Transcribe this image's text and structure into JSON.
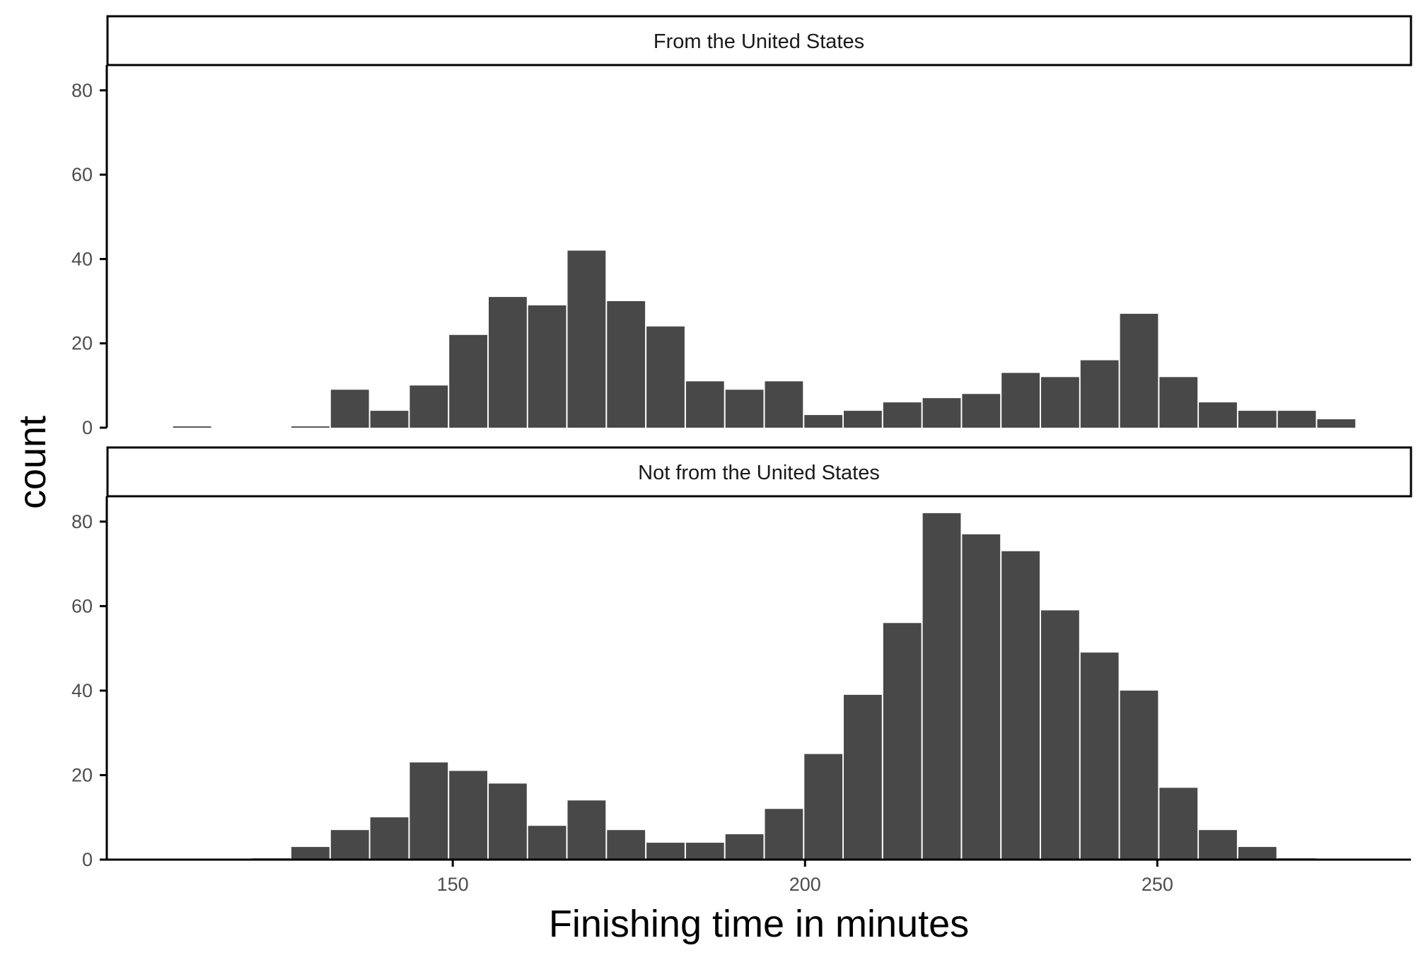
{
  "chart_data": {
    "type": "bar",
    "xlabel": "Finishing time in minutes",
    "ylabel": "count",
    "xlim": [
      101,
      286
    ],
    "ylim": [
      0,
      86
    ],
    "x_ticks": [
      150,
      200,
      250
    ],
    "y_ticks": [
      0,
      20,
      40,
      60,
      80
    ],
    "bin_width": 5.6,
    "bin_centers": [
      113.0,
      118.6,
      124.2,
      129.8,
      135.4,
      141.0,
      146.6,
      152.2,
      157.8,
      163.4,
      169.0,
      174.6,
      180.2,
      185.8,
      191.4,
      197.0,
      202.6,
      208.2,
      213.8,
      219.4,
      225.0,
      230.6,
      236.2,
      241.8,
      247.4,
      253.0,
      258.6,
      264.2,
      269.8,
      275.4
    ],
    "fill_color": "#484848",
    "grid": false,
    "panels": [
      {
        "strip": "From the United States",
        "values": [
          0.3,
          0,
          0,
          0.3,
          9,
          4,
          10,
          22,
          31,
          29,
          42,
          30,
          24,
          11,
          9,
          11,
          3,
          4,
          6,
          7,
          8,
          13,
          12,
          16,
          27,
          12,
          6,
          4,
          4,
          2
        ]
      },
      {
        "strip": "Not from the United States",
        "values": [
          0,
          0,
          0.3,
          3,
          7,
          10,
          23,
          21,
          18,
          8,
          14,
          7,
          4,
          4,
          6,
          12,
          25,
          39,
          56,
          82,
          77,
          73,
          59,
          49,
          40,
          17,
          7,
          3,
          0.3,
          0
        ]
      }
    ]
  }
}
